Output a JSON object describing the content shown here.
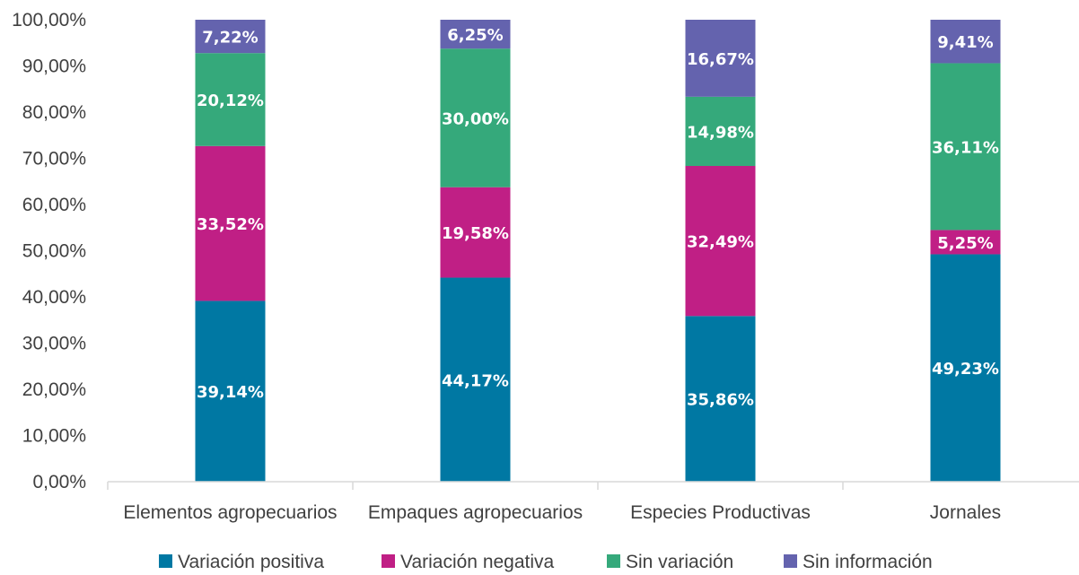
{
  "chart_data": {
    "type": "bar",
    "stacked": true,
    "categories": [
      "Elementos agropecuarios",
      "Empaques agropecuarios",
      "Especies Productivas",
      "Jornales"
    ],
    "series": [
      {
        "name": "Variación positiva",
        "color": "#0078A3",
        "values": [
          39.14,
          44.17,
          35.86,
          49.23
        ],
        "labels": [
          "39,14%",
          "44,17%",
          "35,86%",
          "49,23%"
        ]
      },
      {
        "name": "Variación negativa",
        "color": "#C01F85",
        "values": [
          33.52,
          19.58,
          32.49,
          5.25
        ],
        "labels": [
          "33,52%",
          "19,58%",
          "32,49%",
          "5,25%"
        ]
      },
      {
        "name": "Sin variación",
        "color": "#35A97B",
        "values": [
          20.12,
          30.0,
          14.98,
          36.11
        ],
        "labels": [
          "20,12%",
          "30,00%",
          "14,98%",
          "36,11%"
        ]
      },
      {
        "name": "Sin información",
        "color": "#6463AE",
        "values": [
          7.22,
          6.25,
          16.67,
          9.41
        ],
        "labels": [
          "7,22%",
          "6,25%",
          "16,67%",
          "9,41%"
        ]
      }
    ],
    "ylim": [
      0,
      100
    ],
    "yticks": [
      "0,00%",
      "10,00%",
      "20,00%",
      "30,00%",
      "40,00%",
      "50,00%",
      "60,00%",
      "70,00%",
      "80,00%",
      "90,00%",
      "100,00%"
    ],
    "grid": false,
    "legend_position": "bottom"
  }
}
